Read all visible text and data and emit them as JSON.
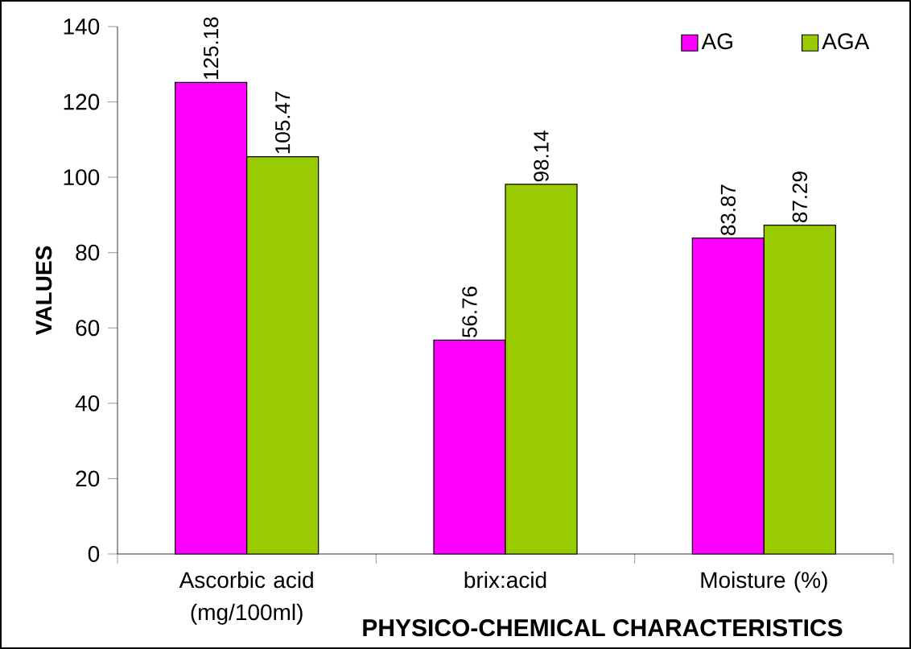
{
  "chart_data": {
    "type": "bar",
    "xlabel": "PHYSICO-CHEMICAL CHARACTERISTICS",
    "ylabel": "VALUES",
    "categories": [
      "Ascorbic acid (mg/100ml)",
      "brix:acid",
      "Moisture (%)"
    ],
    "series": [
      {
        "name": "AG",
        "color": "#ff00ff",
        "values": [
          125.18,
          56.76,
          83.87
        ]
      },
      {
        "name": "AGA",
        "color": "#99cc00",
        "values": [
          105.47,
          98.14,
          87.29
        ]
      }
    ],
    "ylim": [
      0,
      140
    ],
    "yticks": [
      0,
      20,
      40,
      60,
      80,
      100,
      120,
      140
    ],
    "data_labels": true,
    "legend": "top right"
  }
}
